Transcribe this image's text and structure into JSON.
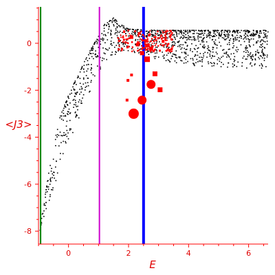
{
  "chart_data": {
    "type": "scatter",
    "title": "",
    "xlabel": "E",
    "ylabel": "<J3>",
    "xlim": [
      -1.0,
      6.65
    ],
    "ylim": [
      -8.55,
      1.55
    ],
    "xticks": [
      "0",
      "2",
      "4",
      "6"
    ],
    "xtick_values": [
      0,
      2,
      4,
      6
    ],
    "yticks": [
      "0",
      "-2",
      "-4",
      "-6",
      "-8"
    ],
    "ytick_values": [
      0,
      -2,
      -4,
      -6,
      -8
    ],
    "grid": false,
    "legend": "none",
    "colors": {
      "axes": "#ff0000",
      "background_points": "#000000",
      "highlight_points": "#ff0000"
    },
    "vertical_lines": [
      {
        "x": -0.93,
        "color": "#008000"
      },
      {
        "x": 1.03,
        "color": "#cc00cc"
      },
      {
        "x": 2.5,
        "color": "#0000ff"
      }
    ],
    "highlight_markers": [
      {
        "x": 2.17,
        "y": -3.0,
        "size": 7.5
      },
      {
        "x": 2.45,
        "y": -2.42,
        "size": 6.5
      },
      {
        "x": 2.75,
        "y": -1.75,
        "size": 6.5
      },
      {
        "x": 2.62,
        "y": -0.68,
        "size": 4
      },
      {
        "x": 3.05,
        "y": -1.98,
        "size": 3.5
      },
      {
        "x": 2.88,
        "y": -1.3,
        "size": 3.5
      },
      {
        "x": 2.45,
        "y": -0.42,
        "size": 3
      },
      {
        "x": 2.75,
        "y": -0.23,
        "size": 3
      },
      {
        "x": 2.3,
        "y": -0.06,
        "size": 2.5
      },
      {
        "x": 2.58,
        "y": 0.1,
        "size": 2.5
      },
      {
        "x": 2.1,
        "y": 0.26,
        "size": 2.5
      },
      {
        "x": 2.65,
        "y": -0.08,
        "size": 2.5
      },
      {
        "x": 2.36,
        "y": 0.42,
        "size": 2
      },
      {
        "x": 1.95,
        "y": -2.42,
        "size": 2
      },
      {
        "x": 1.98,
        "y": -1.58,
        "size": 2
      },
      {
        "x": 2.1,
        "y": -1.35,
        "size": 2
      },
      {
        "x": 3.15,
        "y": 0.08,
        "size": 2
      }
    ],
    "highlight_cluster": {
      "x_range": [
        1.65,
        3.5
      ],
      "y_center": 0.1,
      "count": 140
    },
    "background_distribution": {
      "x_range": [
        -0.95,
        6.65
      ],
      "count": 1250,
      "envelope_upper": [
        [
          -0.95,
          -7.9
        ],
        [
          -0.6,
          -5.0
        ],
        [
          -0.3,
          -3.2
        ],
        [
          0.0,
          -2.2
        ],
        [
          0.3,
          -1.4
        ],
        [
          0.6,
          -0.6
        ],
        [
          0.9,
          0.1
        ],
        [
          1.2,
          0.8
        ],
        [
          1.5,
          1.1
        ],
        [
          1.7,
          0.85
        ],
        [
          2.0,
          0.6
        ],
        [
          3.0,
          0.55
        ],
        [
          6.65,
          0.55
        ]
      ],
      "envelope_lower": [
        [
          -0.95,
          -8.3
        ],
        [
          -0.6,
          -6.9
        ],
        [
          -0.3,
          -5.2
        ],
        [
          0.0,
          -4.3
        ],
        [
          0.3,
          -3.4
        ],
        [
          0.6,
          -2.4
        ],
        [
          0.9,
          -1.5
        ],
        [
          1.2,
          -0.9
        ],
        [
          1.5,
          -0.5
        ],
        [
          2.0,
          -0.35
        ],
        [
          3.0,
          -0.7
        ],
        [
          4.0,
          -0.95
        ],
        [
          6.65,
          -1.1
        ]
      ]
    }
  }
}
